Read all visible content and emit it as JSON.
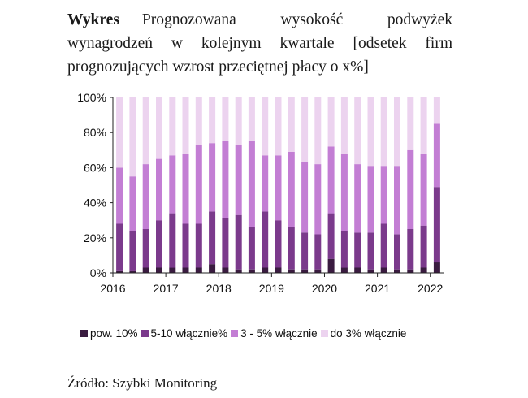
{
  "title": {
    "lead": "Wykres",
    "text": "Prognozowana wysokość podwyżek wynagrodzeń w kolejnym kwartale [odsetek firm prognozujących wzrost przeciętnej płacy o x%]"
  },
  "source": "Źródło: Szybki Monitoring",
  "chart_data": {
    "type": "bar",
    "stacked": true,
    "y_ticks": [
      "0%",
      "20%",
      "40%",
      "60%",
      "80%",
      "100%"
    ],
    "ylim": [
      0,
      100
    ],
    "x_ticks": [
      "2016",
      "2017",
      "2018",
      "2019",
      "2020",
      "2021",
      "2022"
    ],
    "n_bars": 25,
    "grid": false,
    "legend_position": "bottom",
    "series": [
      {
        "name": "pow. 10%",
        "color": "#3a1b40",
        "values": [
          1,
          1,
          3,
          3,
          3,
          3,
          3,
          5,
          3,
          2,
          2,
          3,
          3,
          2,
          2,
          2,
          8,
          3,
          3,
          2,
          3,
          2,
          2,
          3,
          6
        ]
      },
      {
        "name": "5-10 włącznie%",
        "color": "#7b3a8c",
        "values": [
          27,
          23,
          22,
          27,
          31,
          25,
          25,
          30,
          28,
          31,
          24,
          32,
          27,
          24,
          21,
          20,
          26,
          21,
          20,
          21,
          25,
          20,
          23,
          24,
          43
        ]
      },
      {
        "name": "3 - 5% włącznie",
        "color": "#c37ed4",
        "values": [
          32,
          31,
          37,
          35,
          33,
          40,
          45,
          39,
          44,
          40,
          49,
          32,
          37,
          43,
          40,
          40,
          38,
          44,
          39,
          38,
          33,
          39,
          45,
          41,
          36
        ]
      },
      {
        "name": "do 3% włącznie",
        "color": "#ecd3ef",
        "values": [
          40,
          45,
          38,
          35,
          33,
          32,
          27,
          26,
          25,
          27,
          25,
          33,
          33,
          31,
          37,
          38,
          28,
          32,
          38,
          39,
          39,
          39,
          30,
          32,
          15
        ]
      }
    ]
  }
}
